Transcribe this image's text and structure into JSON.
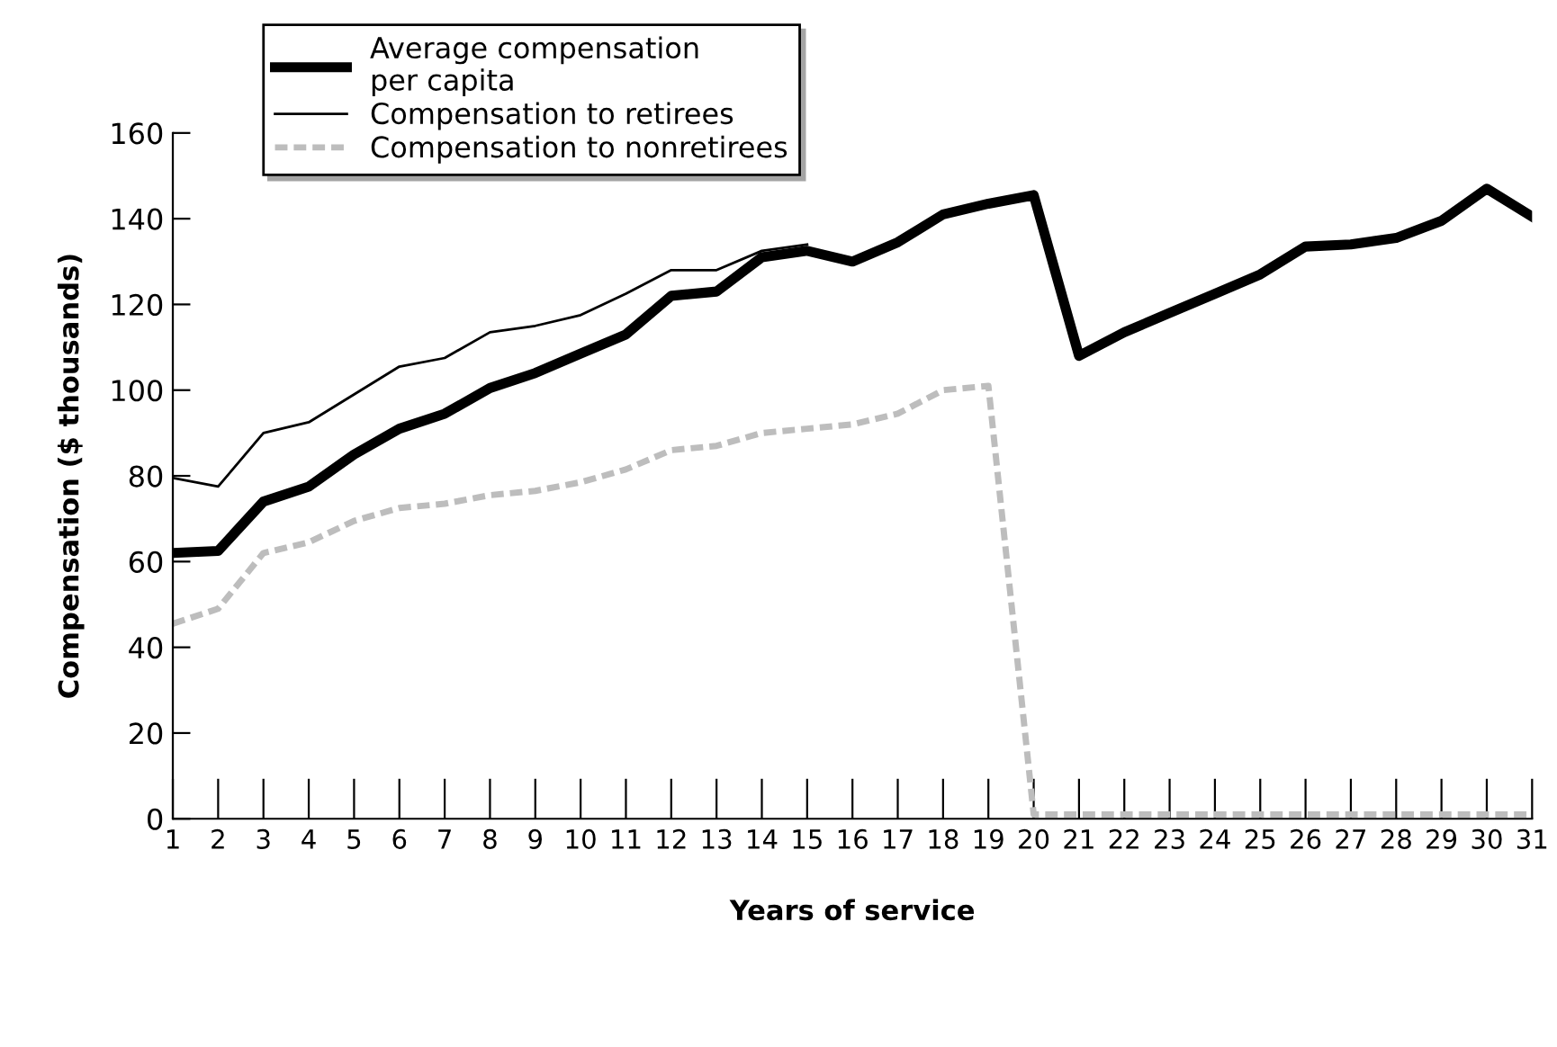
{
  "chart_data": {
    "type": "line",
    "xlabel": "Years of service",
    "ylabel": "Compensation ($ thousands)",
    "x": [
      1,
      2,
      3,
      4,
      5,
      6,
      7,
      8,
      9,
      10,
      11,
      12,
      13,
      14,
      15,
      16,
      17,
      18,
      19,
      20,
      21,
      22,
      23,
      24,
      25,
      26,
      27,
      28,
      29,
      30,
      31
    ],
    "series": [
      {
        "name": "Average compensation\nper capita",
        "color": "#000000",
        "line_style": "solid",
        "values": [
          62,
          62.5,
          74,
          77.5,
          85,
          91,
          94.5,
          100.5,
          104,
          108.5,
          113,
          122,
          123,
          131,
          132.5,
          130,
          134.5,
          141,
          143.5,
          145.5,
          108,
          113.5,
          118,
          122.5,
          127,
          133.5,
          134,
          135.5,
          139.5,
          147,
          140.5
        ]
      },
      {
        "name": "Compensation to retirees",
        "color": "#000000",
        "line_style": "solid",
        "values": [
          79.5,
          77.5,
          90,
          92.5,
          99,
          105.5,
          107.5,
          113.5,
          115,
          117.5,
          122.5,
          128,
          128,
          132.5,
          134,
          null,
          null,
          null,
          null,
          null,
          null,
          null,
          null,
          null,
          null,
          null,
          null,
          null,
          null,
          null,
          null
        ]
      },
      {
        "name": "Compensation to nonretirees",
        "color": "#bdbdbd",
        "line_style": "dashed",
        "values": [
          45.5,
          49,
          62,
          64.5,
          69.5,
          72.5,
          73.5,
          75.5,
          76.5,
          78.5,
          81.5,
          86,
          87,
          90,
          91,
          92,
          94.5,
          100,
          101,
          1,
          1,
          1,
          1,
          1,
          1,
          1,
          1,
          1,
          1,
          1,
          1
        ]
      }
    ],
    "xlim": [
      1,
      31
    ],
    "xticks": [
      1,
      2,
      3,
      4,
      5,
      6,
      7,
      8,
      9,
      10,
      11,
      12,
      13,
      14,
      15,
      16,
      17,
      18,
      19,
      20,
      21,
      22,
      23,
      24,
      25,
      26,
      27,
      28,
      29,
      30,
      31
    ],
    "ylim": [
      0,
      160
    ],
    "yticks": [
      0,
      20,
      40,
      60,
      80,
      100,
      120,
      140,
      160
    ],
    "grid": false,
    "legend": "top left",
    "marker": "none"
  }
}
